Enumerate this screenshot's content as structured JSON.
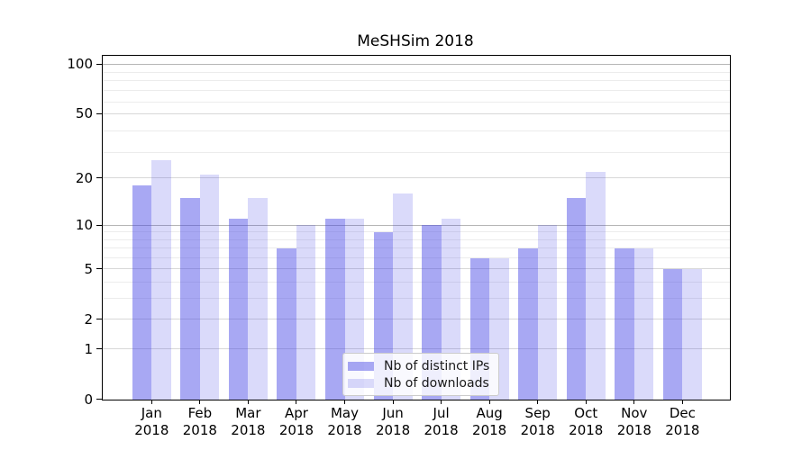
{
  "title": "MeSHSim 2018",
  "chart_data": {
    "type": "bar",
    "title": "MeSHSim 2018",
    "categories": [
      "Jan",
      "Feb",
      "Mar",
      "Apr",
      "May",
      "Jun",
      "Jul",
      "Aug",
      "Sep",
      "Oct",
      "Nov",
      "Dec"
    ],
    "year": "2018",
    "series": [
      {
        "name": "Nb of distinct IPs",
        "color": "rgba(70,70,230,0.47)",
        "values": [
          18,
          15,
          11,
          7,
          11,
          9,
          10,
          6,
          7,
          15,
          7,
          5
        ]
      },
      {
        "name": "Nb of downloads",
        "color": "rgba(70,70,230,0.20)",
        "values": [
          26,
          21,
          15,
          10,
          11,
          16,
          11,
          6,
          10,
          22,
          7,
          5
        ]
      }
    ],
    "xlabel": "",
    "ylabel": "",
    "yscale": "log10(1+v)",
    "ylim": [
      0,
      113
    ],
    "yticks": [
      0,
      1,
      2,
      5,
      10,
      20,
      50,
      100
    ],
    "minor_gridlines": [
      3,
      4,
      6,
      7,
      8,
      9,
      29,
      39,
      59,
      69,
      79,
      89
    ],
    "grid": true,
    "legend_position": "lower center",
    "colors": {
      "decade_gridline": "#b5b5b5",
      "labeled_gridline": "#d8d8d8",
      "minor_gridline": "#ececec",
      "axis": "#000000"
    }
  }
}
